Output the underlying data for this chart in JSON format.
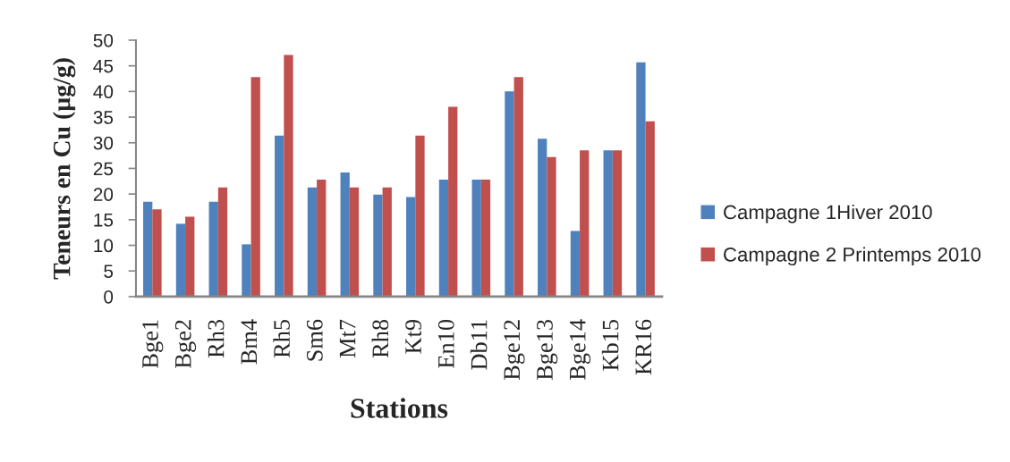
{
  "chart_data": {
    "type": "bar",
    "xlabel": "Stations",
    "ylabel": "Teneurs en Cu (µg/g)",
    "categories": [
      "Bge1",
      "Bge2",
      "Rh3",
      "Bm4",
      "Rh5",
      "Sm6",
      "Mt7",
      "Rh8",
      "Kt9",
      "En10",
      "Db11",
      "Bge12",
      "Bge13",
      "Bge14",
      "Kb15",
      "KR16"
    ],
    "series": [
      {
        "name": "Campagne 1Hiver 2010",
        "color": "#4f81bd",
        "values": [
          18.5,
          14.2,
          18.5,
          10.2,
          31.4,
          21.3,
          24.2,
          19.9,
          19.4,
          22.8,
          22.8,
          40.0,
          30.8,
          12.8,
          28.5,
          45.7
        ]
      },
      {
        "name": "Campagne 2 Printemps 2010",
        "color": "#c0504d",
        "values": [
          17.0,
          15.6,
          21.3,
          42.8,
          47.1,
          22.8,
          21.3,
          21.3,
          31.4,
          37.0,
          22.8,
          42.8,
          27.2,
          28.5,
          28.5,
          34.2
        ]
      }
    ],
    "ylim": [
      0,
      50
    ],
    "yticks": [
      0,
      5,
      10,
      15,
      20,
      25,
      30,
      35,
      40,
      45,
      50
    ],
    "legend": "right"
  }
}
